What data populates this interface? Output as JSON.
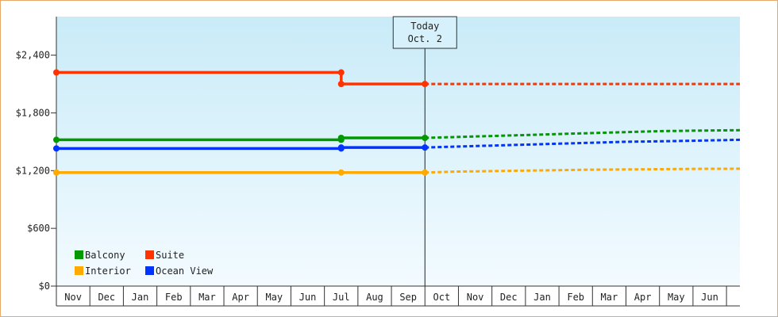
{
  "chart_data": {
    "type": "line",
    "title": "",
    "xlabel": "",
    "ylabel": "",
    "ylim": [
      0,
      2800
    ],
    "y_ticks": [
      0,
      600,
      1200,
      1800,
      2400
    ],
    "y_tick_labels": [
      "$0",
      "$600",
      "$1,200",
      "$1,800",
      "$2,400"
    ],
    "months": [
      "Nov",
      "Dec",
      "Jan",
      "Feb",
      "Mar",
      "Apr",
      "May",
      "Jun",
      "Jul",
      "Aug",
      "Sep",
      "Oct",
      "Nov",
      "Dec",
      "Jan",
      "Feb",
      "Mar",
      "Apr",
      "May",
      "Jun"
    ],
    "x_range": [
      0,
      20.4
    ],
    "today": {
      "x": 11,
      "line1": "Today",
      "line2": "Oct. 2"
    },
    "grid": false,
    "legend_position": "bottom-left",
    "series": [
      {
        "name": "Balcony",
        "color": "#009900",
        "history": [
          [
            0,
            1520
          ],
          [
            8.5,
            1520
          ],
          [
            8.5,
            1540
          ],
          [
            11,
            1540
          ]
        ],
        "forecast": [
          [
            11,
            1540
          ],
          [
            12,
            1550
          ],
          [
            13,
            1560
          ],
          [
            14,
            1570
          ],
          [
            15,
            1580
          ],
          [
            16,
            1590
          ],
          [
            17,
            1600
          ],
          [
            18,
            1610
          ],
          [
            19,
            1615
          ],
          [
            20.4,
            1620
          ]
        ]
      },
      {
        "name": "Suite",
        "color": "#ff3300",
        "history": [
          [
            0,
            2220
          ],
          [
            8.5,
            2220
          ],
          [
            8.5,
            2100
          ],
          [
            11,
            2100
          ]
        ],
        "forecast": [
          [
            11,
            2100
          ],
          [
            20.4,
            2100
          ]
        ]
      },
      {
        "name": "Interior",
        "color": "#ffaa00",
        "history": [
          [
            0,
            1180
          ],
          [
            8.5,
            1180
          ],
          [
            11,
            1180
          ]
        ],
        "forecast": [
          [
            11,
            1180
          ],
          [
            12,
            1190
          ],
          [
            13,
            1195
          ],
          [
            14,
            1200
          ],
          [
            15,
            1205
          ],
          [
            16,
            1210
          ],
          [
            17,
            1212
          ],
          [
            18,
            1215
          ],
          [
            19,
            1218
          ],
          [
            20.4,
            1220
          ]
        ]
      },
      {
        "name": "Ocean View",
        "color": "#0033ff",
        "history": [
          [
            0,
            1430
          ],
          [
            8.5,
            1430
          ],
          [
            8.5,
            1440
          ],
          [
            11,
            1440
          ]
        ],
        "forecast": [
          [
            11,
            1440
          ],
          [
            12,
            1450
          ],
          [
            13,
            1460
          ],
          [
            14,
            1470
          ],
          [
            15,
            1480
          ],
          [
            16,
            1490
          ],
          [
            17,
            1500
          ],
          [
            18,
            1505
          ],
          [
            19,
            1510
          ],
          [
            20.4,
            1520
          ]
        ]
      }
    ],
    "markers": [
      {
        "series": 0,
        "x": 0,
        "y": 1520
      },
      {
        "series": 0,
        "x": 8.5,
        "y": 1520
      },
      {
        "series": 0,
        "x": 8.5,
        "y": 1540
      },
      {
        "series": 0,
        "x": 11,
        "y": 1540
      },
      {
        "series": 1,
        "x": 0,
        "y": 2220
      },
      {
        "series": 1,
        "x": 8.5,
        "y": 2220
      },
      {
        "series": 1,
        "x": 8.5,
        "y": 2100
      },
      {
        "series": 1,
        "x": 11,
        "y": 2100
      },
      {
        "series": 2,
        "x": 0,
        "y": 1180
      },
      {
        "series": 2,
        "x": 8.5,
        "y": 1180
      },
      {
        "series": 2,
        "x": 11,
        "y": 1180
      },
      {
        "series": 3,
        "x": 0,
        "y": 1430
      },
      {
        "series": 3,
        "x": 8.5,
        "y": 1430
      },
      {
        "series": 3,
        "x": 8.5,
        "y": 1440
      },
      {
        "series": 3,
        "x": 11,
        "y": 1440
      }
    ],
    "legend_order": [
      0,
      1,
      2,
      3
    ]
  }
}
